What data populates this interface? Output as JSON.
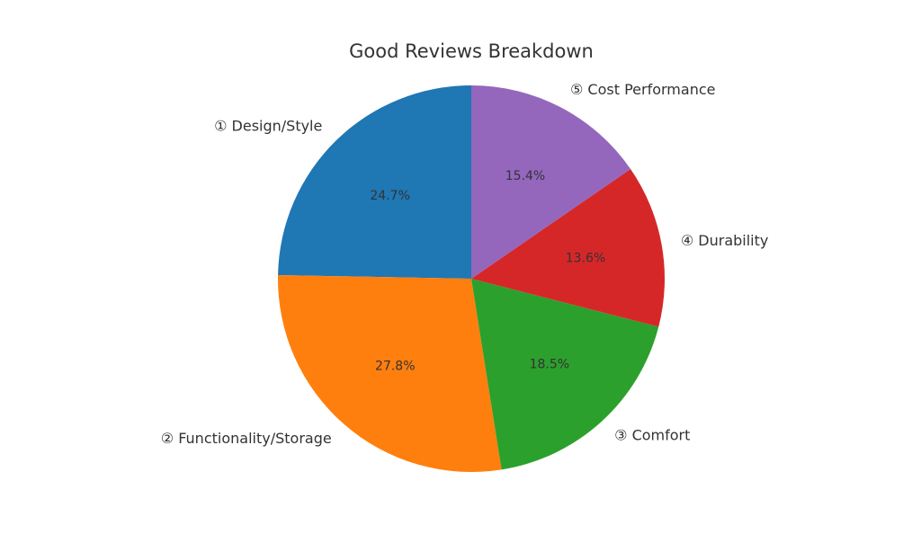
{
  "chart_data": {
    "type": "pie",
    "title": "Good Reviews Breakdown",
    "categories": [
      "① Design/Style",
      "② Functionality/Storage",
      "③ Comfort",
      "④ Durability",
      "⑤ Cost Performance"
    ],
    "values": [
      24.7,
      27.8,
      18.5,
      13.6,
      15.4
    ],
    "value_labels": [
      "24.7%",
      "27.8%",
      "18.5%",
      "13.6%",
      "15.4%"
    ],
    "colors": [
      "#1f77b4",
      "#ff7f0e",
      "#2ca02c",
      "#d62728",
      "#9467bd"
    ],
    "start_angle": 90,
    "direction": "counterclockwise"
  }
}
